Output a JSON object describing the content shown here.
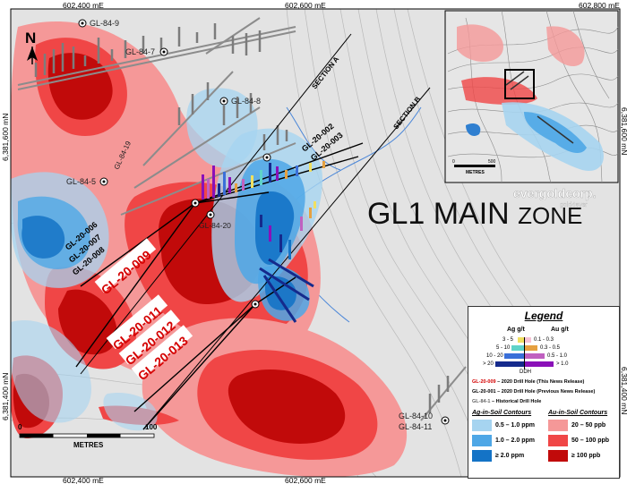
{
  "title": {
    "main": "GL1 MAIN",
    "suffix": "ZONE"
  },
  "north_label": "N",
  "easting_labels": {
    "top": [
      "602,400 mE",
      "602,600 mE",
      "602,800 mE"
    ],
    "bottom": [
      "602,400 mE",
      "602,600 mE"
    ]
  },
  "northing_labels": {
    "left": [
      "6,381,600 mN",
      "6,381,400 mN"
    ],
    "right": [
      "6,381,600 mN",
      "6,381,400 mN"
    ]
  },
  "sections": [
    "SECTION A",
    "SECTION B"
  ],
  "historical_holes": [
    "GL-84-9",
    "GL-84-7",
    "GL-84-8",
    "GL-84-19",
    "GL-84-5",
    "GL-84-20",
    "GL-84-10",
    "GL-84-11"
  ],
  "previous_holes": [
    "GL-20-002",
    "GL-20-003",
    "GL-20-006",
    "GL-20-007",
    "GL-20-008"
  ],
  "new_holes": [
    "GL-20-009",
    "GL-20-011",
    "GL-20-012",
    "GL-20-013"
  ],
  "scale": {
    "zero": "0",
    "end": "100",
    "unit": "METRES"
  },
  "inset": {
    "scale_zero": "0",
    "scale_end": "500",
    "unit": "METRES",
    "lake_color": "#2f7fd0"
  },
  "logo": {
    "name": "evergoldcorp.",
    "tagline": "gold4ever"
  },
  "legend": {
    "title": "Legend",
    "ag_header": "Ag g/t",
    "au_header": "Au g/t",
    "grades": [
      {
        "ag": "3 - 5",
        "au": "0.1 - 0.3",
        "ag_color": "#f0e060",
        "au_color": "#f7c3d4"
      },
      {
        "ag": "5 - 10",
        "au": "0.3 - 0.5",
        "ag_color": "#5fd3c8",
        "au_color": "#e6a040"
      },
      {
        "ag": "10 - 20",
        "au": "0.5 - 1.0",
        "ag_color": "#3a6fd8",
        "au_color": "#c060c0"
      },
      {
        "ag": "> 20",
        "au": "> 1.0",
        "ag_color": "#152a8c",
        "au_color": "#8a10b8"
      }
    ],
    "ddh": "DDH",
    "drill_new": {
      "id": "GL-20-009",
      "text": " – 2020 Drill Hole (This News Release)"
    },
    "drill_prev": {
      "id": "GL-20-001",
      "text": " – 2020 Drill Hole (Previous News Release)"
    },
    "drill_hist": {
      "id": "GL-84-1",
      "text": " – Historical Drill Hole"
    },
    "ag_soil_title": "Ag-in-Soil Contours",
    "au_soil_title": "Au-in-Soil Contours",
    "ag_soil": [
      {
        "label": "0.5 – 1.0 ppm",
        "color": "#a6d4f0"
      },
      {
        "label": "1.0 – 2.0 ppm",
        "color": "#4ea7e6"
      },
      {
        "label": "≥  2.0 ppm",
        "color": "#1473c6"
      }
    ],
    "au_soil": [
      {
        "label": "20 – 50 ppb",
        "color": "#f59898"
      },
      {
        "label": "50 – 100 ppb",
        "color": "#f04646"
      },
      {
        "label": "≥  100 ppb",
        "color": "#c10a0a"
      }
    ]
  },
  "colors": {
    "au_low": "#f59898",
    "au_mid": "#f04646",
    "au_high": "#c10a0a",
    "ag_low": "#a6d4f0",
    "ag_mid": "#4ea7e6",
    "ag_high": "#1473c6",
    "new_hole_red": "#d40000",
    "creek": "#4a86d8"
  }
}
